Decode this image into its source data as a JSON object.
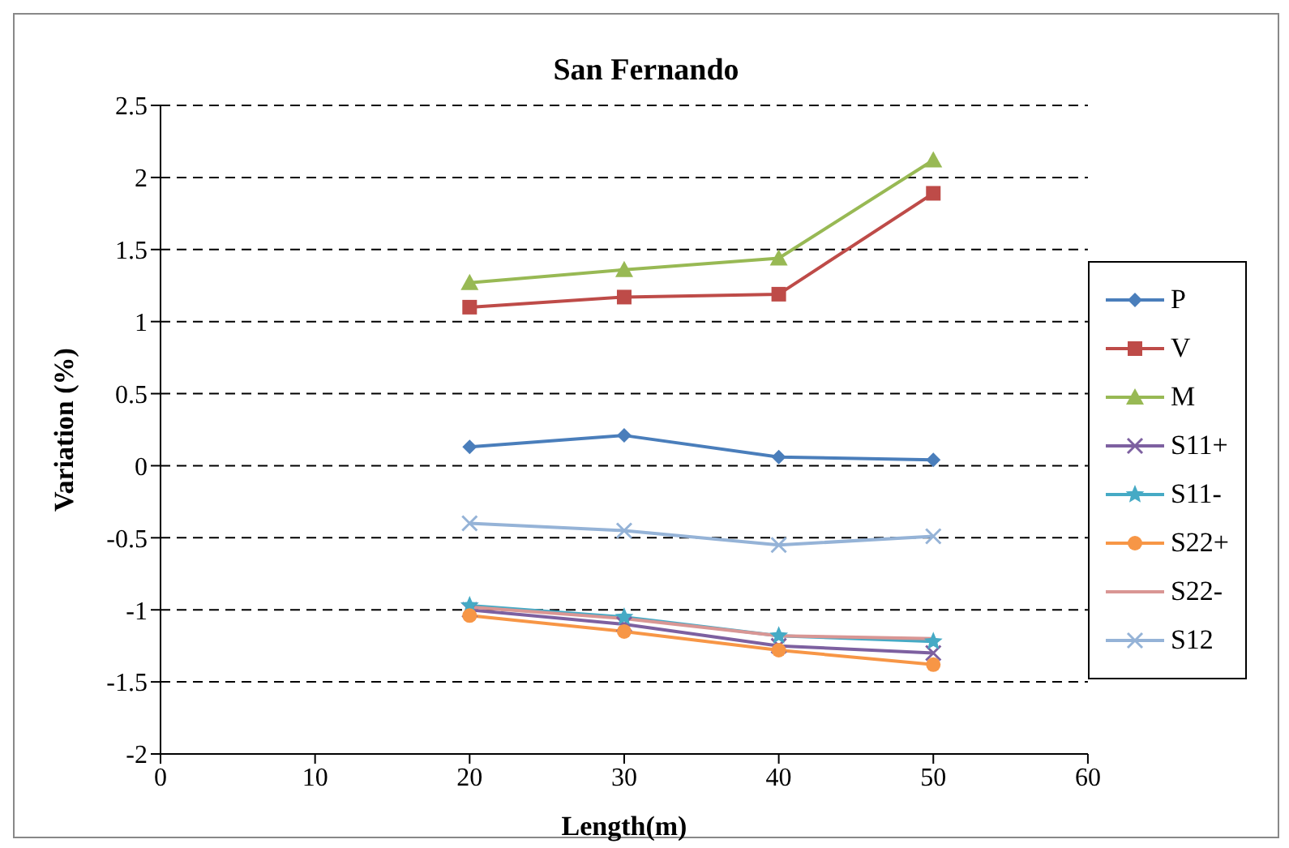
{
  "chart_data": {
    "type": "line",
    "title": "San Fernando",
    "xlabel": "Length(m)",
    "ylabel": "Variation (%)",
    "x": [
      20,
      30,
      40,
      50
    ],
    "xlim": [
      0,
      60
    ],
    "xticks": [
      0,
      10,
      20,
      30,
      40,
      50,
      60
    ],
    "ylim": [
      -2,
      2.5
    ],
    "yticks": [
      -2,
      -1.5,
      -1,
      -0.5,
      0,
      0.5,
      1,
      1.5,
      2,
      2.5
    ],
    "grid": "y",
    "legend": "right",
    "line_style": "solid",
    "series": [
      {
        "name": "P",
        "color": "#4a7ebb",
        "marker": "diamond",
        "values": [
          0.13,
          0.21,
          0.06,
          0.04
        ]
      },
      {
        "name": "V",
        "color": "#be4b48",
        "marker": "square",
        "values": [
          1.1,
          1.17,
          1.19,
          1.89
        ]
      },
      {
        "name": "M",
        "color": "#98b954",
        "marker": "triangle",
        "values": [
          1.27,
          1.36,
          1.44,
          2.12
        ]
      },
      {
        "name": "S11+",
        "color": "#7d60a0",
        "marker": "cross",
        "values": [
          -1.0,
          -1.1,
          -1.25,
          -1.3
        ]
      },
      {
        "name": "S11-",
        "color": "#46aac5",
        "marker": "star",
        "values": [
          -0.97,
          -1.05,
          -1.18,
          -1.22
        ]
      },
      {
        "name": "S22+",
        "color": "#f79646",
        "marker": "circle",
        "values": [
          -1.04,
          -1.15,
          -1.28,
          -1.38
        ]
      },
      {
        "name": "S22-",
        "color": "#d99694",
        "marker": "none",
        "values": [
          -0.98,
          -1.06,
          -1.18,
          -1.2
        ]
      },
      {
        "name": "S12",
        "color": "#95b3d7",
        "marker": "cross",
        "values": [
          -0.4,
          -0.45,
          -0.55,
          -0.49
        ]
      }
    ]
  }
}
